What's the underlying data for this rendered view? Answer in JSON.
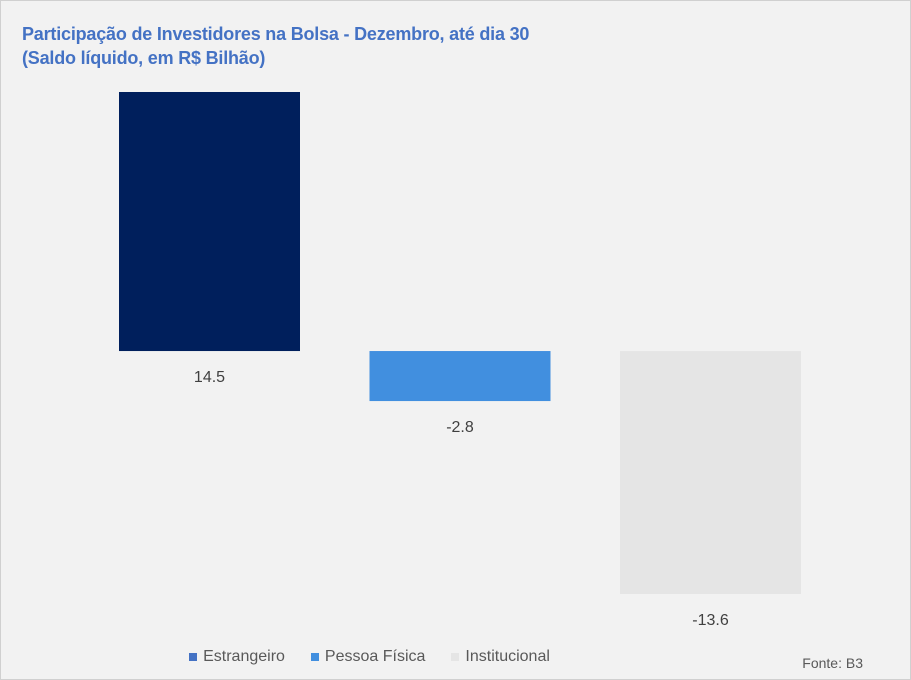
{
  "chart_data": {
    "type": "bar",
    "title": "Participação de Investidores na Bolsa - Dezembro, até dia 30",
    "subtitle": "(Saldo líquido, em R$ Bilhão)",
    "categories": [
      "Estrangeiro",
      "Pessoa Física",
      "Institucional"
    ],
    "values": [
      14.5,
      -2.8,
      -13.6
    ],
    "value_labels": [
      "14.5",
      "-2.8",
      "-13.6"
    ],
    "colors": [
      "#001f5c",
      "#418fdf",
      "#e5e5e5"
    ],
    "legend_colors": [
      "#4472c4",
      "#418fdf",
      "#e5e5e5"
    ],
    "legend_position": "bottom",
    "grid": false,
    "ylim": [
      -13.6,
      14.5
    ]
  },
  "source": "Fonte: B3"
}
